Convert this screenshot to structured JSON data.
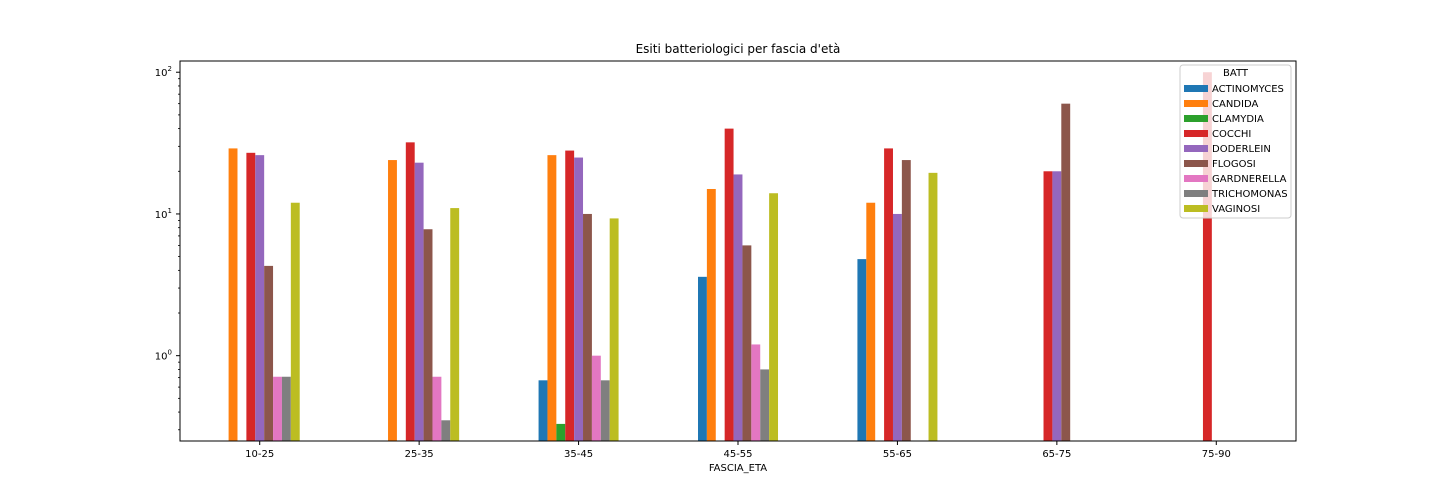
{
  "chart_data": {
    "type": "bar",
    "title": "Esiti batteriologici per fascia d'età",
    "xlabel": "FASCIA_ETA",
    "ylabel": "",
    "yscale": "log",
    "ylim": [
      0.25,
      120
    ],
    "y_ticks": [
      {
        "value": 1,
        "base": "10",
        "exp": "0"
      },
      {
        "value": 10,
        "base": "10",
        "exp": "1"
      },
      {
        "value": 100,
        "base": "10",
        "exp": "2"
      }
    ],
    "grid": false,
    "legend": {
      "title": "BATT",
      "placement": "top-right"
    },
    "categories": [
      "10-25",
      "25-35",
      "35-45",
      "45-55",
      "55-65",
      "65-75",
      "75-90"
    ],
    "series": [
      {
        "name": "ACTINOMYCES",
        "color": "#1f77b4",
        "values": [
          null,
          null,
          0.67,
          3.6,
          4.8,
          null,
          null
        ]
      },
      {
        "name": "CANDIDA",
        "color": "#ff7f0e",
        "values": [
          29,
          24,
          26,
          15,
          12,
          null,
          null
        ]
      },
      {
        "name": "CLAMYDIA",
        "color": "#2ca02c",
        "values": [
          null,
          null,
          0.33,
          null,
          null,
          null,
          null
        ]
      },
      {
        "name": "COCCHI",
        "color": "#d62728",
        "values": [
          27,
          32,
          28,
          40,
          29,
          20,
          100
        ]
      },
      {
        "name": "DODERLEIN",
        "color": "#9467bd",
        "values": [
          26,
          23,
          25,
          19,
          10,
          20,
          null
        ]
      },
      {
        "name": "FLOGOSI",
        "color": "#8c564b",
        "values": [
          4.3,
          7.8,
          10,
          6,
          24,
          60,
          null
        ]
      },
      {
        "name": "GARDNERELLA",
        "color": "#e377c2",
        "values": [
          0.71,
          0.71,
          1.0,
          1.2,
          null,
          null,
          null
        ]
      },
      {
        "name": "TRICHOMONAS",
        "color": "#7f7f7f",
        "values": [
          0.71,
          0.35,
          0.67,
          0.8,
          null,
          null,
          null
        ]
      },
      {
        "name": "VAGINOSI",
        "color": "#bcbd22",
        "values": [
          12,
          11,
          9.3,
          14,
          19.5,
          null,
          null
        ]
      }
    ]
  }
}
